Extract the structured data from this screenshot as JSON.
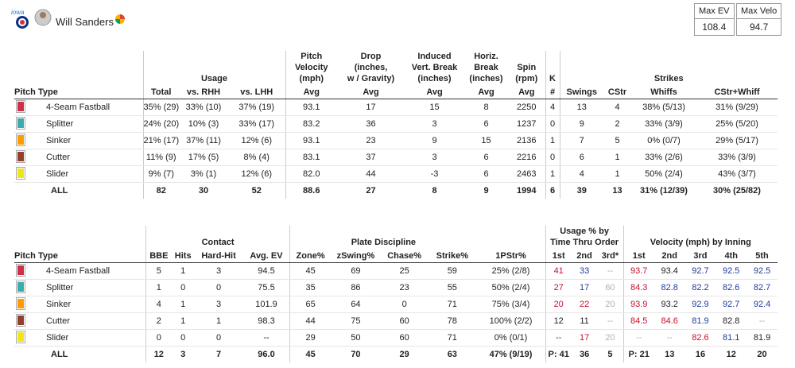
{
  "header": {
    "name": "Will Sanders",
    "stats": [
      {
        "label": "Max EV",
        "value": "108.4"
      },
      {
        "label": "Max Velo",
        "value": "94.7"
      }
    ]
  },
  "table1": {
    "groups": [
      "Usage",
      "Pitch\nVelocity\n(mph)",
      "Drop\n(inches,\nw / Gravity)",
      "Induced\nVert. Break\n(inches)",
      "Horiz.\nBreak\n(inches)",
      "Spin\n(rpm)",
      "K",
      "Strikes"
    ],
    "columns": [
      "Pitch Type",
      "Total",
      "vs. RHH",
      "vs. LHH",
      "Avg",
      "Avg",
      "Avg",
      "Avg",
      "Avg",
      "#",
      "Swings",
      "CStr",
      "Whiffs",
      "CStr+Whiff"
    ],
    "rows": [
      {
        "pitch": "4-Seam Fastball",
        "color": "#d22d49",
        "cells": [
          "35% (29)",
          "33% (10)",
          "37% (19)",
          "93.1",
          "17",
          "15",
          "8",
          "2250",
          "4",
          "13",
          "4",
          "38% (5/13)",
          "31% (9/29)"
        ]
      },
      {
        "pitch": "Splitter",
        "color": "#3bacac",
        "cells": [
          "24% (20)",
          "10% (3)",
          "33% (17)",
          "83.2",
          "36",
          "3",
          "6",
          "1237",
          "0",
          "9",
          "2",
          "33% (3/9)",
          "25% (5/20)"
        ]
      },
      {
        "pitch": "Sinker",
        "color": "#fe9d00",
        "cells": [
          "21% (17)",
          "37% (11)",
          "12% (6)",
          "93.1",
          "23",
          "9",
          "15",
          "2136",
          "1",
          "7",
          "5",
          "0% (0/7)",
          "29% (5/17)"
        ]
      },
      {
        "pitch": "Cutter",
        "color": "#933f2c",
        "cells": [
          "11% (9)",
          "17% (5)",
          "8% (4)",
          "83.1",
          "37",
          "3",
          "6",
          "2216",
          "0",
          "6",
          "1",
          "33% (2/6)",
          "33% (3/9)"
        ]
      },
      {
        "pitch": "Slider",
        "color": "#eee716",
        "cells": [
          "9% (7)",
          "3% (1)",
          "12% (6)",
          "82.0",
          "44",
          "-3",
          "6",
          "2463",
          "1",
          "4",
          "1",
          "50% (2/4)",
          "43% (3/7)"
        ]
      }
    ],
    "total": {
      "pitch": "ALL",
      "cells": [
        "82",
        "30",
        "52",
        "88.6",
        "27",
        "8",
        "9",
        "1994",
        "6",
        "39",
        "13",
        "31% (12/39)",
        "30% (25/82)"
      ]
    }
  },
  "table2": {
    "groups": [
      "Contact",
      "Plate Discipline",
      "Usage % by\nTime Thru Order",
      "Velocity (mph) by Inning"
    ],
    "columns": [
      "Pitch Type",
      "BBE",
      "Hits",
      "Hard-Hit",
      "Avg. EV",
      "Zone%",
      "zSwing%",
      "Chase%",
      "Strike%",
      "1PStr%",
      "1st",
      "2nd",
      "3rd*",
      "1st",
      "2nd",
      "3rd",
      "4th",
      "5th"
    ],
    "rows": [
      {
        "pitch": "4-Seam Fastball",
        "color": "#d22d49",
        "cells": [
          "5",
          "1",
          "3",
          "94.5",
          "45",
          "69",
          "25",
          "59",
          "25% (2/8)",
          "41",
          "33",
          "--",
          "93.7",
          "93.4",
          "92.7",
          "92.5",
          "92.5"
        ]
      },
      {
        "pitch": "Splitter",
        "color": "#3bacac",
        "cells": [
          "1",
          "0",
          "0",
          "75.5",
          "35",
          "86",
          "23",
          "55",
          "50% (2/4)",
          "27",
          "17",
          "60",
          "84.3",
          "82.8",
          "82.2",
          "82.6",
          "82.7"
        ]
      },
      {
        "pitch": "Sinker",
        "color": "#fe9d00",
        "cells": [
          "4",
          "1",
          "3",
          "101.9",
          "65",
          "64",
          "0",
          "71",
          "75% (3/4)",
          "20",
          "22",
          "20",
          "93.9",
          "93.2",
          "92.9",
          "92.7",
          "92.4"
        ]
      },
      {
        "pitch": "Cutter",
        "color": "#933f2c",
        "cells": [
          "2",
          "1",
          "1",
          "98.3",
          "44",
          "75",
          "60",
          "78",
          "100% (2/2)",
          "12",
          "11",
          "--",
          "84.5",
          "84.6",
          "81.9",
          "82.8",
          "--"
        ]
      },
      {
        "pitch": "Slider",
        "color": "#eee716",
        "cells": [
          "0",
          "0",
          "0",
          "--",
          "29",
          "50",
          "60",
          "71",
          "0% (0/1)",
          "--",
          "17",
          "20",
          "--",
          "--",
          "82.6",
          "81.1",
          "81.9"
        ]
      }
    ],
    "total": {
      "pitch": "ALL",
      "cells": [
        "12",
        "3",
        "7",
        "96.0",
        "45",
        "70",
        "29",
        "63",
        "47% (9/19)",
        "P: 41",
        "36",
        "5",
        "P: 21",
        "13",
        "16",
        "12",
        "20"
      ]
    }
  }
}
